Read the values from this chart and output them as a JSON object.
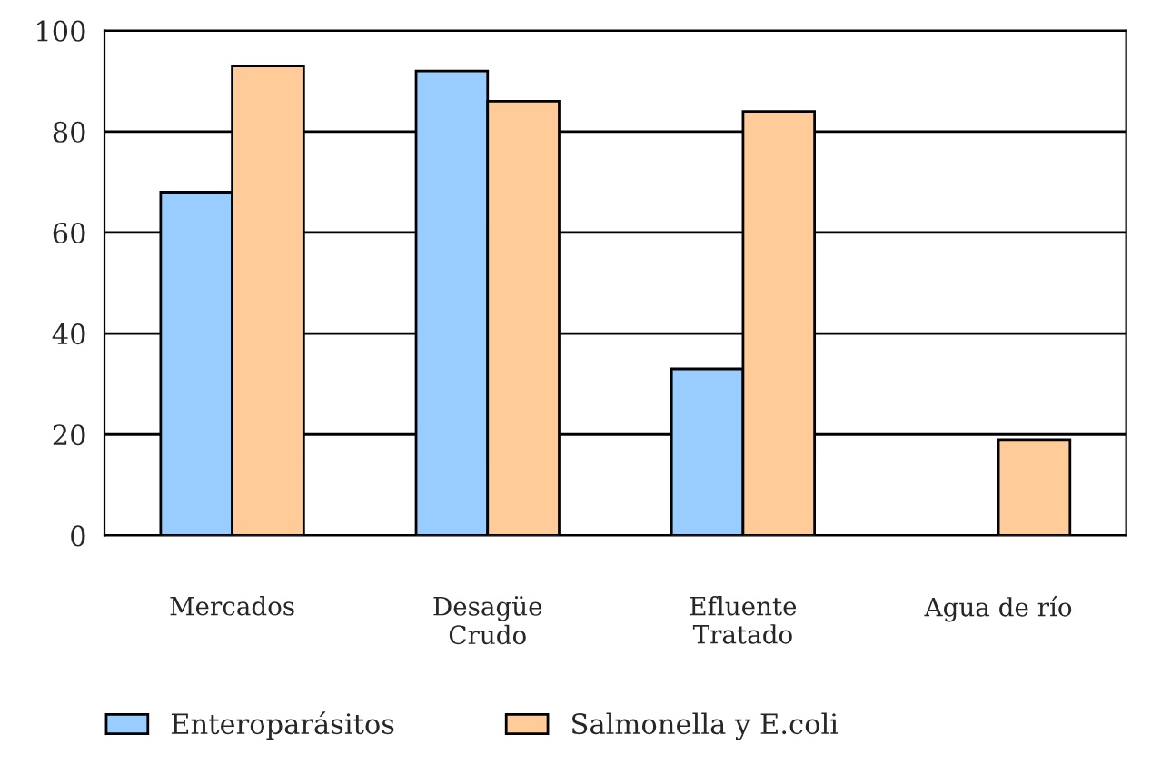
{
  "chart_data": {
    "type": "bar",
    "categories": [
      "Mercados",
      "Desagüe\nCrudo",
      "Efluente\nTratado",
      "Agua de río"
    ],
    "series": [
      {
        "name": "Enteroparásitos",
        "color": "#99ccff",
        "values": [
          68,
          92,
          33,
          null
        ]
      },
      {
        "name": "Salmonella y E.coli",
        "color": "#ffcc99",
        "values": [
          93,
          86,
          84,
          19
        ]
      }
    ],
    "ylim": [
      0,
      100
    ],
    "yticks": [
      0,
      20,
      40,
      60,
      80,
      100
    ],
    "grid": "y",
    "legend": "bottom"
  }
}
